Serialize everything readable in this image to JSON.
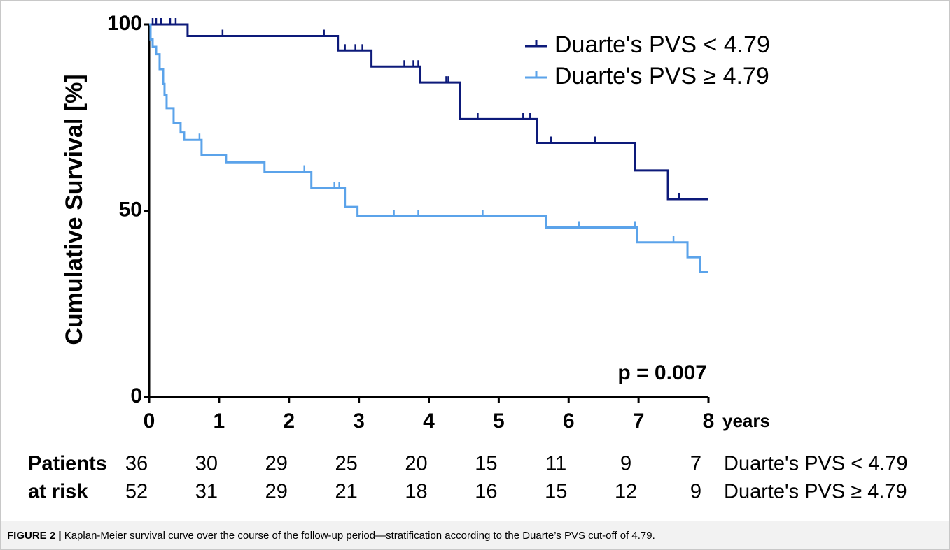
{
  "chart_data": {
    "type": "kaplan-meier",
    "y_label": "Cumulative Survival [%]",
    "x_label": "years",
    "xlim": [
      0,
      8
    ],
    "xticks": [
      0,
      1,
      2,
      3,
      4,
      5,
      6,
      7,
      8
    ],
    "ylim": [
      0,
      100
    ],
    "yticks": [
      0,
      50,
      100
    ],
    "annotation": "p = 0.007",
    "legend": "top-right",
    "series": [
      {
        "name": "Duarte's PVS < 4.79",
        "color": "#0d1a7a",
        "times": [
          0,
          0.55,
          2.7,
          3.18,
          3.88,
          4.45,
          5.55,
          6.95,
          7.42,
          8
        ],
        "survival": [
          100,
          96.9,
          93,
          88.7,
          84.4,
          74.6,
          68.2,
          60.8,
          53.1,
          53.1
        ],
        "censored_times": [
          0.05,
          0.1,
          0.17,
          0.3,
          0.38,
          1.05,
          2.5,
          2.8,
          2.95,
          3.05,
          3.65,
          3.78,
          3.85,
          4.25,
          4.28,
          4.7,
          5.35,
          5.45,
          5.75,
          6.38,
          7.58
        ],
        "censored_survival": [
          100,
          100,
          100,
          100,
          100,
          96.9,
          96.9,
          93,
          93,
          93,
          88.7,
          88.7,
          88.7,
          84.4,
          84.4,
          74.6,
          74.6,
          74.6,
          68.2,
          68.2,
          53.1
        ]
      },
      {
        "name": "Duarte's PVS ≥ 4.79",
        "color": "#5ba3ea",
        "times": [
          0,
          0.02,
          0.05,
          0.1,
          0.15,
          0.2,
          0.22,
          0.25,
          0.35,
          0.45,
          0.5,
          0.75,
          1.1,
          1.65,
          2.32,
          2.8,
          2.98,
          5.68,
          6.98,
          7.7,
          7.88,
          8
        ],
        "survival": [
          100,
          96,
          94,
          92,
          88,
          84,
          81,
          77.5,
          73.5,
          71,
          69,
          65,
          63,
          60.5,
          56,
          51,
          48.5,
          45.5,
          41.5,
          37.5,
          33.5,
          33.5
        ],
        "censored_times": [
          0.72,
          2.22,
          2.65,
          2.72,
          3.5,
          3.85,
          4.77,
          6.15,
          6.95,
          7.5
        ],
        "censored_survival": [
          69,
          60.5,
          56,
          56,
          48.5,
          48.5,
          48.5,
          45.5,
          45.5,
          41.5
        ]
      }
    ],
    "risk_table": {
      "label": [
        "Patients",
        "at risk"
      ],
      "rows": [
        {
          "name": "Duarte's PVS < 4.79",
          "counts": [
            36,
            30,
            29,
            25,
            20,
            15,
            11,
            9,
            7
          ]
        },
        {
          "name": "Duarte's PVS ≥ 4.79",
          "counts": [
            52,
            31,
            29,
            21,
            18,
            16,
            15,
            12,
            9
          ]
        }
      ]
    },
    "caption": {
      "label": "FIGURE 2 |",
      "text": " Kaplan-Meier survival curve over the course of the follow-up period—stratification according to the Duarte’s PVS cut-off of 4.79."
    }
  }
}
